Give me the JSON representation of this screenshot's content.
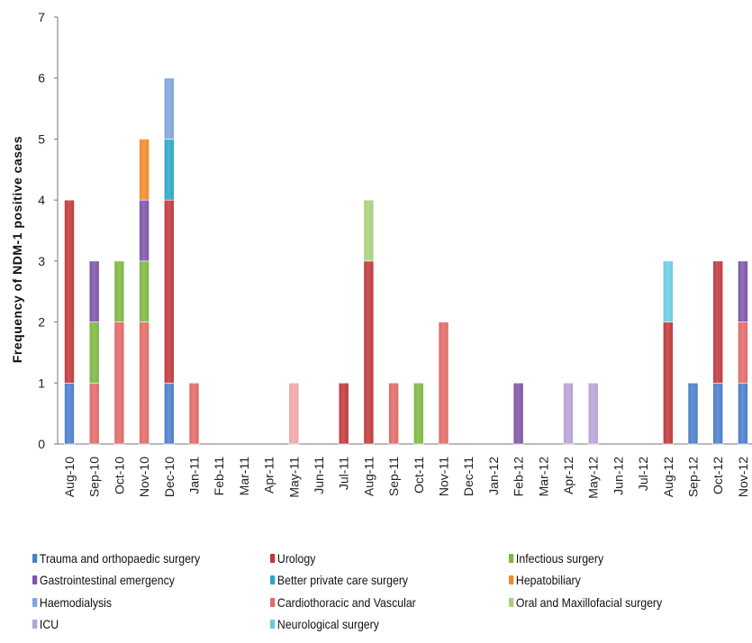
{
  "chart_data": {
    "type": "bar",
    "stacked": true,
    "ylabel": "Frequency of NDM-1 positive cases",
    "xlabel": "",
    "ylim": [
      0,
      7
    ],
    "yticks": [
      "0",
      "1",
      "2",
      "3",
      "4",
      "5",
      "6",
      "7"
    ],
    "grid": false,
    "legend_position": "bottom",
    "categories": [
      "Aug-10",
      "Sep-10",
      "Oct-10",
      "Nov-10",
      "Dec-10",
      "Jan-11",
      "Feb-11",
      "Mar-11",
      "Apr-11",
      "May-11",
      "Jun-11",
      "Jul-11",
      "Aug-11",
      "Sep-11",
      "Oct-11",
      "Nov-11",
      "Dec-11",
      "Jan-12",
      "Feb-12",
      "Mar-12",
      "Apr-12",
      "May-12",
      "Jun-12",
      "Jul-12",
      "Aug-12",
      "Sep-12",
      "Oct-12",
      "Nov-12"
    ],
    "series": [
      {
        "name": "Trauma and  orthopaedic surgery",
        "color": "#4a7fc9",
        "values": [
          1,
          0,
          0,
          0,
          1,
          0,
          0,
          0,
          0,
          0,
          0,
          0,
          0,
          0,
          0,
          0,
          0,
          0,
          0,
          0,
          0,
          0,
          0,
          0,
          0,
          1,
          1,
          1
        ]
      },
      {
        "name": "Urology",
        "color": "#c0393b",
        "values": [
          3,
          0,
          0,
          0,
          3,
          0,
          0,
          0,
          0,
          0,
          0,
          1,
          3,
          0,
          0,
          0,
          0,
          0,
          0,
          0,
          0,
          0,
          0,
          0,
          2,
          0,
          2,
          0
        ]
      },
      {
        "name": "Cardiothoracic and Vascular",
        "color": "#e06a68",
        "values": [
          0,
          1,
          2,
          2,
          0,
          1,
          0,
          0,
          0,
          0,
          0,
          0,
          0,
          1,
          0,
          2,
          0,
          0,
          0,
          0,
          0,
          0,
          0,
          0,
          0,
          0,
          0,
          1
        ]
      },
      {
        "name": "Infectious surgery",
        "color": "#7db742",
        "values": [
          0,
          1,
          1,
          1,
          0,
          0,
          0,
          0,
          0,
          0,
          0,
          0,
          0,
          0,
          1,
          0,
          0,
          0,
          0,
          0,
          0,
          0,
          0,
          0,
          0,
          0,
          0,
          0
        ]
      },
      {
        "name": "Oral and Maxillofacial surgery",
        "color": "#a9cf7e",
        "values": [
          0,
          0,
          0,
          0,
          0,
          0,
          0,
          0,
          0,
          0,
          0,
          0,
          1,
          0,
          0,
          0,
          0,
          0,
          0,
          0,
          0,
          0,
          0,
          0,
          0,
          0,
          0,
          0
        ]
      },
      {
        "name": "Gastrointestinal emergency",
        "color": "#7e55a8",
        "values": [
          0,
          1,
          0,
          1,
          0,
          0,
          0,
          0,
          0,
          0,
          0,
          0,
          0,
          0,
          0,
          0,
          0,
          0,
          1,
          0,
          0,
          0,
          0,
          0,
          0,
          0,
          0,
          1
        ]
      },
      {
        "name": "ICU",
        "color": "#b7a2d6",
        "values": [
          0,
          0,
          0,
          0,
          0,
          0,
          0,
          0,
          0,
          0,
          0,
          0,
          0,
          0,
          0,
          0,
          0,
          0,
          0,
          0,
          1,
          1,
          0,
          0,
          0,
          0,
          0,
          0
        ]
      },
      {
        "name": "Hepatobiliary",
        "color": "#f28a28",
        "values": [
          0,
          0,
          0,
          1,
          0,
          0,
          0,
          0,
          0,
          0,
          0,
          0,
          0,
          0,
          0,
          0,
          0,
          0,
          0,
          0,
          0,
          0,
          0,
          0,
          0,
          0,
          0,
          0
        ]
      },
      {
        "name": "Better private care surgery",
        "color": "#2ea7c6",
        "values": [
          0,
          0,
          0,
          0,
          1,
          0,
          0,
          0,
          0,
          0,
          0,
          0,
          0,
          0,
          0,
          0,
          0,
          0,
          0,
          0,
          0,
          0,
          0,
          0,
          0,
          0,
          0,
          0
        ]
      },
      {
        "name": "Neurological surgery",
        "color": "#6ccbe0",
        "values": [
          0,
          0,
          0,
          0,
          0,
          0,
          0,
          0,
          0,
          0,
          0,
          0,
          0,
          0,
          0,
          0,
          0,
          0,
          0,
          0,
          0,
          0,
          0,
          0,
          1,
          0,
          0,
          0
        ]
      },
      {
        "name": "Haemodialysis",
        "color": "#7da6dc",
        "values": [
          0,
          0,
          0,
          0,
          1,
          0,
          0,
          0,
          0,
          0,
          0,
          0,
          0,
          0,
          0,
          0,
          0,
          0,
          0,
          0,
          0,
          0,
          0,
          0,
          0,
          0,
          0,
          0
        ]
      },
      {
        "name": "Cardiothoracic and Vascular (light)",
        "color": "#f0a6a4",
        "values": [
          0,
          0,
          0,
          0,
          0,
          0,
          0,
          0,
          0,
          1,
          0,
          0,
          0,
          0,
          0,
          0,
          0,
          0,
          0,
          0,
          0,
          0,
          0,
          0,
          0,
          0,
          0,
          0
        ]
      }
    ],
    "legend": [
      {
        "label": "Trauma and  orthopaedic surgery",
        "color": "#4a7fc9"
      },
      {
        "label": "Urology",
        "color": "#c0393b"
      },
      {
        "label": "Infectious surgery",
        "color": "#7db742"
      },
      {
        "label": "Gastrointestinal emergency",
        "color": "#7e55a8"
      },
      {
        "label": "Better private care surgery",
        "color": "#2ea7c6"
      },
      {
        "label": "Hepatobiliary",
        "color": "#f28a28"
      },
      {
        "label": "Haemodialysis",
        "color": "#7da6dc"
      },
      {
        "label": "Cardiothoracic and Vascular",
        "color": "#e06a68"
      },
      {
        "label": "Oral and Maxillofacial surgery",
        "color": "#a9cf7e"
      },
      {
        "label": "ICU",
        "color": "#b7a2d6"
      },
      {
        "label": "Neurological surgery",
        "color": "#6ccbe0"
      }
    ]
  }
}
